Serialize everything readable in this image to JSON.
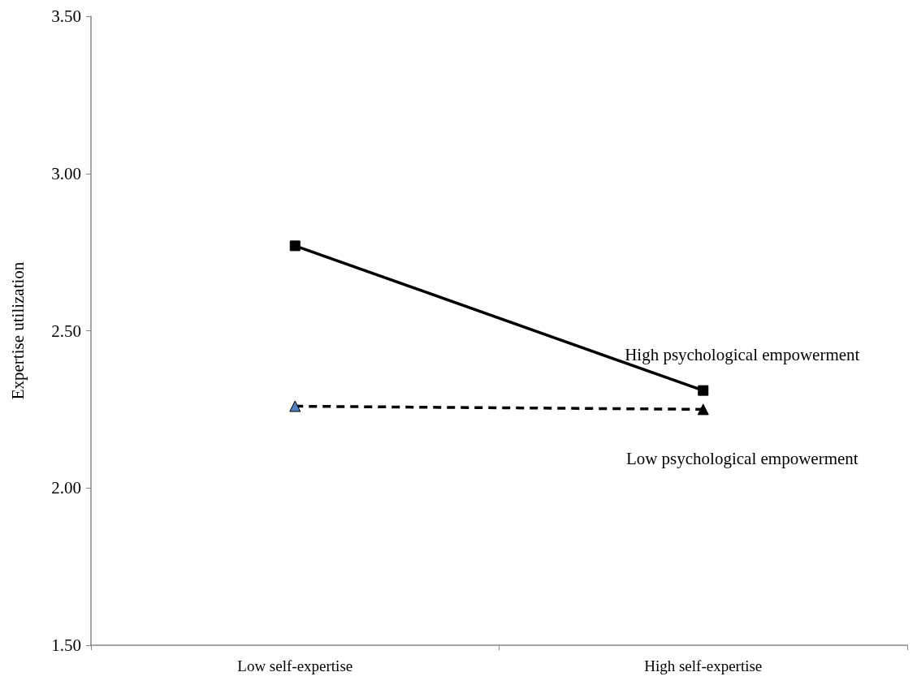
{
  "chart_data": {
    "type": "line",
    "ylabel": "Expertise utilization",
    "categories": [
      "Low self-expertise",
      "High self-expertise"
    ],
    "series": [
      {
        "name": "High psychological empowerment",
        "color": "#000000",
        "values": [
          2.77,
          2.31
        ],
        "marker": "square",
        "line_style": "solid"
      },
      {
        "name": "Low psychological empowerment",
        "color": "#000000",
        "colors": [
          "#4f81bd",
          "#000000"
        ],
        "values": [
          2.26,
          2.25
        ],
        "marker": "triangle",
        "line_style": "dashed"
      }
    ],
    "ylim": [
      1.5,
      3.5
    ],
    "yticks": [
      {
        "value": 1.5,
        "label": "1.50"
      },
      {
        "value": 2,
        "label": "2.00"
      },
      {
        "value": 2.5,
        "label": "2.50"
      },
      {
        "value": 3,
        "label": "3.00"
      },
      {
        "value": 3.5,
        "label": "3.50"
      }
    ],
    "grid": false,
    "legend": false
  }
}
